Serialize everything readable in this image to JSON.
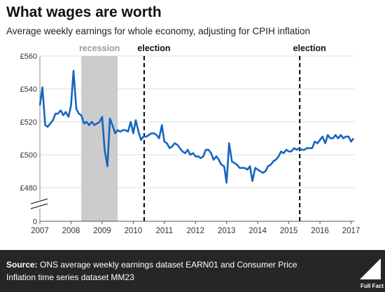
{
  "title": "What wages are worth",
  "subtitle": "Average weekly earnings for whole economy, adjusting for CPIH inflation",
  "source": {
    "label": "Source:",
    "text": " ONS average weekly earnings dataset EARN01 and Consumer Price Inflation time series dataset MM23"
  },
  "logo_text": "Full Fact",
  "colors": {
    "line": "#1565c0",
    "recession": "#cccccc",
    "footer": "#262626",
    "grid": "#dddddd"
  },
  "chart_data": {
    "type": "line",
    "title": "What wages are worth",
    "subtitle": "Average weekly earnings for whole economy, adjusting for CPIH inflation",
    "xlabel": "",
    "ylabel": "",
    "xlim": [
      2007,
      2017.1
    ],
    "ylim": [
      480,
      560
    ],
    "axis_break": true,
    "x_ticks": [
      "2007",
      "2008",
      "2009",
      "2010",
      "2011",
      "2012",
      "2013",
      "2014",
      "2015",
      "2016",
      "2017"
    ],
    "y_ticks": [
      "£560",
      "£540",
      "£520",
      "£500",
      "£480",
      "0"
    ],
    "grid": true,
    "annotations": [
      {
        "label": "recession",
        "type": "shaded-band",
        "x_start": 2008.33,
        "x_end": 2009.5
      },
      {
        "label": "election",
        "type": "dashed-line",
        "x": 2010.35
      },
      {
        "label": "election",
        "type": "dashed-line",
        "x": 2015.35
      }
    ],
    "series": [
      {
        "x": [
          2007.0,
          2007.08,
          2007.17,
          2007.25,
          2007.33,
          2007.42,
          2007.5,
          2007.58,
          2007.67,
          2007.75,
          2007.83,
          2007.92,
          2008.0,
          2008.08,
          2008.17,
          2008.25,
          2008.33,
          2008.42,
          2008.5,
          2008.58,
          2008.67,
          2008.75,
          2008.83,
          2008.92,
          2009.0,
          2009.08,
          2009.17,
          2009.25,
          2009.33,
          2009.42,
          2009.5,
          2009.58,
          2009.67,
          2009.75,
          2009.83,
          2009.92,
          2010.0,
          2010.08,
          2010.17,
          2010.25,
          2010.33,
          2010.42,
          2010.5,
          2010.58,
          2010.67,
          2010.75,
          2010.83,
          2010.92,
          2011.0,
          2011.08,
          2011.17,
          2011.25,
          2011.33,
          2011.42,
          2011.5,
          2011.58,
          2011.67,
          2011.75,
          2011.83,
          2011.92,
          2012.0,
          2012.08,
          2012.17,
          2012.25,
          2012.33,
          2012.42,
          2012.5,
          2012.58,
          2012.67,
          2012.75,
          2012.83,
          2012.92,
          2013.0,
          2013.08,
          2013.17,
          2013.25,
          2013.33,
          2013.42,
          2013.5,
          2013.58,
          2013.67,
          2013.75,
          2013.83,
          2013.92,
          2014.0,
          2014.08,
          2014.17,
          2014.25,
          2014.33,
          2014.42,
          2014.5,
          2014.58,
          2014.67,
          2014.75,
          2014.83,
          2014.92,
          2015.0,
          2015.08,
          2015.17,
          2015.25,
          2015.33,
          2015.42,
          2015.5,
          2015.58,
          2015.67,
          2015.75,
          2015.83,
          2015.92,
          2016.0,
          2016.08,
          2016.17,
          2016.25,
          2016.33,
          2016.42,
          2016.5,
          2016.58,
          2016.67,
          2016.75,
          2016.83,
          2016.92,
          2017.0,
          2017.08
        ],
        "values": [
          530,
          541,
          518,
          517,
          519,
          521,
          525,
          525,
          527,
          524,
          526,
          523,
          530,
          551,
          528,
          525,
          524,
          519,
          520,
          518,
          520,
          518,
          519,
          520,
          523,
          503,
          493,
          522,
          518,
          513,
          515,
          514,
          515,
          515,
          514,
          520,
          513,
          521,
          514,
          509,
          511,
          511,
          512,
          513,
          513,
          512,
          510,
          518,
          508,
          507,
          504,
          505,
          507,
          506,
          504,
          502,
          501,
          503,
          500,
          501,
          499,
          499,
          498,
          499,
          503,
          503,
          501,
          497,
          499,
          497,
          494,
          493,
          483,
          507,
          496,
          495,
          494,
          492,
          492,
          492,
          491,
          493,
          484,
          492,
          491,
          490,
          489,
          490,
          493,
          494,
          496,
          497,
          499,
          502,
          501,
          503,
          502,
          502,
          504,
          503,
          504,
          503,
          503,
          504,
          504,
          504,
          508,
          507,
          509,
          511,
          507,
          512,
          510,
          510,
          512,
          510,
          512,
          510,
          511,
          511,
          508,
          510
        ]
      }
    ]
  }
}
